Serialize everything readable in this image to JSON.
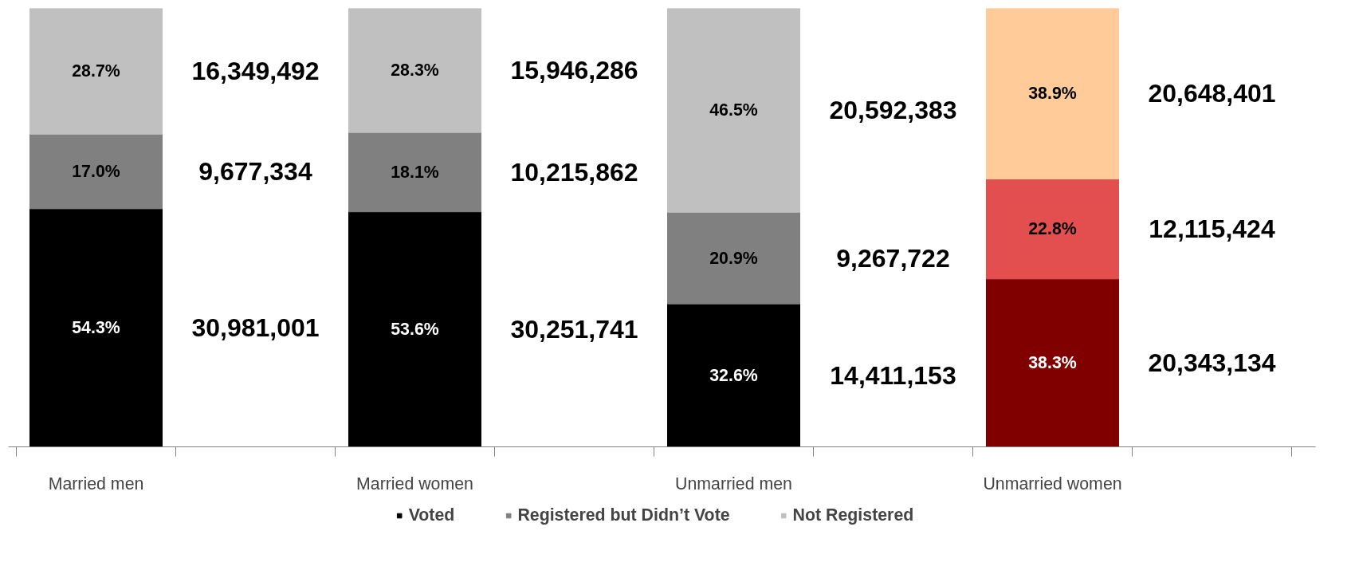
{
  "chart_data": {
    "type": "bar",
    "stacked": true,
    "legend": "bottom",
    "grid": false,
    "categories": [
      "Married men",
      null,
      "Married women",
      null,
      "Unmarried men",
      null,
      "Unmarried women",
      null
    ],
    "series": [
      {
        "name": "Voted",
        "color": "#000000",
        "colors": [
          null,
          null,
          null,
          null,
          null,
          null,
          "#800000",
          null
        ],
        "values": [
          54.3,
          null,
          53.6,
          null,
          32.6,
          null,
          38.3,
          null
        ],
        "value_labels": [
          "54.3%",
          null,
          "53.6%",
          null,
          "32.6%",
          null,
          "38.3%",
          null
        ]
      },
      {
        "name": "Registered but Didn’t Vote",
        "color": "#808080",
        "colors": [
          null,
          null,
          null,
          null,
          null,
          null,
          "#e34f4f",
          null
        ],
        "values": [
          17.0,
          null,
          18.1,
          null,
          20.9,
          null,
          22.8,
          null
        ],
        "value_labels": [
          "17.0%",
          null,
          "18.1%",
          null,
          "20.9%",
          null,
          "22.8%",
          null
        ]
      },
      {
        "name": "Not Registered",
        "color": "#c0c0c0",
        "colors": [
          null,
          null,
          null,
          null,
          null,
          null,
          "#ffcc99",
          null
        ],
        "values": [
          28.7,
          null,
          28.3,
          null,
          46.5,
          null,
          38.9,
          null
        ],
        "value_labels": [
          "28.7%",
          null,
          "28.3%",
          null,
          "46.5%",
          null,
          "38.9%",
          null
        ]
      }
    ],
    "annotations": [
      "30,981,001",
      "9,677,334",
      "16,349,492",
      "30,251,741",
      "10,215,862",
      "15,946,286",
      "14,411,153",
      "9,267,722",
      "20,592,383",
      "20,343,134",
      "12,115,424",
      "20,648,401"
    ]
  }
}
